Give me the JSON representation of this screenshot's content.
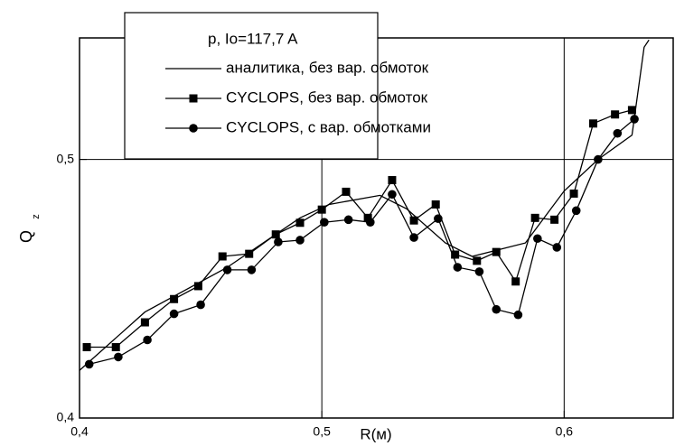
{
  "chart_data": {
    "type": "line",
    "legend_title": "p, Io=117,7 A",
    "x_label": "R(м)",
    "y_label": "Q",
    "y_label_sub": "z",
    "xlim": [
      0.4,
      0.645
    ],
    "ylim": [
      0.4,
      0.547
    ],
    "xticks": [
      {
        "value": 0.4,
        "label": "0,4"
      },
      {
        "value": 0.5,
        "label": "0,5"
      },
      {
        "value": 0.6,
        "label": "0,6"
      }
    ],
    "yticks": [
      {
        "value": 0.4,
        "label": "0,4"
      },
      {
        "value": 0.5,
        "label": "0,5"
      }
    ],
    "grid": true,
    "legend": "upper left",
    "series": [
      {
        "name": "аналитика, без вар. обмоток",
        "color": "#000000",
        "marker": "none",
        "x": [
          0.4,
          0.427,
          0.461,
          0.491,
          0.503,
          0.524,
          0.535,
          0.551,
          0.562,
          0.584,
          0.6,
          0.614,
          0.628,
          0.633,
          0.635
        ],
        "values": [
          0.4184,
          0.441,
          0.4583,
          0.4774,
          0.4826,
          0.4861,
          0.4809,
          0.4677,
          0.4625,
          0.4677,
          0.4878,
          0.5,
          0.5094,
          0.5434,
          0.5462
        ]
      },
      {
        "name": "CYCLOPS, без вар. обмоток",
        "color": "#000000",
        "marker": "square",
        "x": [
          0.403,
          0.415,
          0.427,
          0.439,
          0.449,
          0.459,
          0.47,
          0.481,
          0.491,
          0.5,
          0.51,
          0.519,
          0.529,
          0.538,
          0.547,
          0.555,
          0.564,
          0.572,
          0.58,
          0.588,
          0.596,
          0.604,
          0.612,
          0.621,
          0.628
        ],
        "values": [
          0.4274,
          0.4274,
          0.437,
          0.446,
          0.451,
          0.4625,
          0.4635,
          0.471,
          0.4755,
          0.4806,
          0.4875,
          0.4774,
          0.492,
          0.4764,
          0.4826,
          0.4632,
          0.4608,
          0.4642,
          0.4528,
          0.4774,
          0.4767,
          0.4868,
          0.5139,
          0.5174,
          0.5191
        ]
      },
      {
        "name": "CYCLOPS, с вар. обмотками",
        "color": "#000000",
        "marker": "circle",
        "x": [
          0.404,
          0.416,
          0.428,
          0.439,
          0.45,
          0.461,
          0.471,
          0.482,
          0.491,
          0.501,
          0.511,
          0.52,
          0.529,
          0.538,
          0.548,
          0.556,
          0.565,
          0.572,
          0.581,
          0.589,
          0.597,
          0.605,
          0.614,
          0.622,
          0.629
        ],
        "values": [
          0.4208,
          0.4236,
          0.4302,
          0.4403,
          0.4438,
          0.4573,
          0.4573,
          0.4681,
          0.4688,
          0.4757,
          0.4767,
          0.4757,
          0.4865,
          0.4698,
          0.4771,
          0.4583,
          0.4566,
          0.442,
          0.4399,
          0.4694,
          0.466,
          0.4802,
          0.5,
          0.5101,
          0.5156
        ]
      }
    ]
  }
}
